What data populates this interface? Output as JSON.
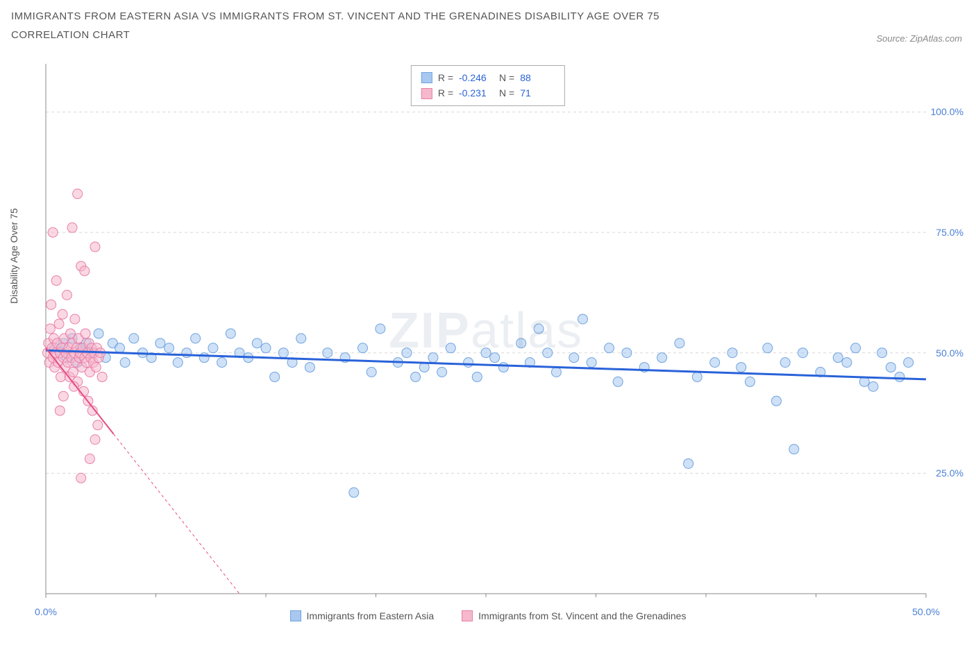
{
  "title_line1": "IMMIGRANTS FROM EASTERN ASIA VS IMMIGRANTS FROM ST. VINCENT AND THE GRENADINES DISABILITY AGE OVER 75",
  "title_line2": "CORRELATION CHART",
  "source_text": "Source: ZipAtlas.com",
  "y_axis_label": "Disability Age Over 75",
  "watermark_bold": "ZIP",
  "watermark_light": "atlas",
  "chart": {
    "type": "scatter",
    "xlim": [
      0,
      50
    ],
    "ylim": [
      0,
      110
    ],
    "x_ticks": [
      0,
      50
    ],
    "x_tick_labels": [
      "0.0%",
      "50.0%"
    ],
    "y_ticks": [
      25,
      50,
      75,
      100
    ],
    "y_tick_labels": [
      "25.0%",
      "50.0%",
      "75.0%",
      "100.0%"
    ],
    "x_minor_ticks": [
      6.25,
      12.5,
      18.75,
      25,
      31.25,
      37.5,
      43.75
    ],
    "background_color": "#ffffff",
    "grid_color": "#d8d8d8",
    "axis_color": "#888888",
    "axis_font_color": "#4a7fd6",
    "series": [
      {
        "name": "Immigrants from Eastern Asia",
        "color_fill": "#a8c8f0",
        "color_stroke": "#6fa3e0",
        "trend_color": "#2962d9",
        "trend_dash": "none",
        "marker_radius": 7,
        "fill_opacity": 0.55,
        "R": "-0.246",
        "N": "88",
        "trend": {
          "x1": 0,
          "y1": 50.5,
          "x2": 50,
          "y2": 44.5
        },
        "points": [
          [
            0.5,
            51
          ],
          [
            0.8,
            50
          ],
          [
            1.0,
            52
          ],
          [
            1.2,
            49
          ],
          [
            1.5,
            53
          ],
          [
            1.8,
            48
          ],
          [
            2.0,
            51
          ],
          [
            2.3,
            52
          ],
          [
            2.6,
            50
          ],
          [
            3.0,
            54
          ],
          [
            3.4,
            49
          ],
          [
            3.8,
            52
          ],
          [
            4.2,
            51
          ],
          [
            4.5,
            48
          ],
          [
            5.0,
            53
          ],
          [
            5.5,
            50
          ],
          [
            6.0,
            49
          ],
          [
            6.5,
            52
          ],
          [
            7.0,
            51
          ],
          [
            7.5,
            48
          ],
          [
            8.0,
            50
          ],
          [
            8.5,
            53
          ],
          [
            9.0,
            49
          ],
          [
            9.5,
            51
          ],
          [
            10.0,
            48
          ],
          [
            10.5,
            54
          ],
          [
            11.0,
            50
          ],
          [
            11.5,
            49
          ],
          [
            12.0,
            52
          ],
          [
            12.5,
            51
          ],
          [
            13.0,
            45
          ],
          [
            13.5,
            50
          ],
          [
            14.0,
            48
          ],
          [
            14.5,
            53
          ],
          [
            15.0,
            47
          ],
          [
            16.0,
            50
          ],
          [
            17.0,
            49
          ],
          [
            17.5,
            21
          ],
          [
            18.0,
            51
          ],
          [
            18.5,
            46
          ],
          [
            19.0,
            55
          ],
          [
            20.0,
            48
          ],
          [
            20.5,
            50
          ],
          [
            21.0,
            45
          ],
          [
            21.5,
            47
          ],
          [
            22.0,
            49
          ],
          [
            22.5,
            46
          ],
          [
            23.0,
            51
          ],
          [
            24.0,
            48
          ],
          [
            24.5,
            45
          ],
          [
            25.0,
            50
          ],
          [
            25.5,
            49
          ],
          [
            26.0,
            47
          ],
          [
            27.0,
            52
          ],
          [
            27.5,
            48
          ],
          [
            28.0,
            55
          ],
          [
            28.5,
            50
          ],
          [
            29.0,
            46
          ],
          [
            30.0,
            49
          ],
          [
            30.5,
            57
          ],
          [
            31.0,
            48
          ],
          [
            32.0,
            51
          ],
          [
            32.5,
            44
          ],
          [
            33.0,
            50
          ],
          [
            34.0,
            47
          ],
          [
            35.0,
            49
          ],
          [
            36.0,
            52
          ],
          [
            36.5,
            27
          ],
          [
            37.0,
            45
          ],
          [
            38.0,
            48
          ],
          [
            39.0,
            50
          ],
          [
            39.5,
            47
          ],
          [
            40.0,
            44
          ],
          [
            41.0,
            51
          ],
          [
            41.5,
            40
          ],
          [
            42.0,
            48
          ],
          [
            42.5,
            30
          ],
          [
            43.0,
            50
          ],
          [
            44.0,
            46
          ],
          [
            45.0,
            49
          ],
          [
            45.5,
            48
          ],
          [
            46.0,
            51
          ],
          [
            46.5,
            44
          ],
          [
            47.0,
            43
          ],
          [
            47.5,
            50
          ],
          [
            48.0,
            47
          ],
          [
            48.5,
            45
          ],
          [
            49.0,
            48
          ]
        ]
      },
      {
        "name": "Immigrants from St. Vincent and the Grenadines",
        "color_fill": "#f5b8cc",
        "color_stroke": "#e87fa8",
        "trend_color": "#e34d82",
        "trend_dash": "4,4",
        "marker_radius": 7,
        "fill_opacity": 0.55,
        "R": "-0.231",
        "N": "71",
        "trend": {
          "x1": 0,
          "y1": 51,
          "x2": 11,
          "y2": 0
        },
        "points": [
          [
            0.1,
            50
          ],
          [
            0.15,
            52
          ],
          [
            0.2,
            48
          ],
          [
            0.25,
            55
          ],
          [
            0.3,
            60
          ],
          [
            0.35,
            51
          ],
          [
            0.4,
            49
          ],
          [
            0.45,
            53
          ],
          [
            0.5,
            47
          ],
          [
            0.55,
            50
          ],
          [
            0.6,
            65
          ],
          [
            0.65,
            52
          ],
          [
            0.7,
            48
          ],
          [
            0.75,
            56
          ],
          [
            0.8,
            50
          ],
          [
            0.85,
            45
          ],
          [
            0.9,
            51
          ],
          [
            0.95,
            58
          ],
          [
            1.0,
            49
          ],
          [
            1.05,
            53
          ],
          [
            1.1,
            47
          ],
          [
            1.15,
            50
          ],
          [
            1.2,
            62
          ],
          [
            1.25,
            48
          ],
          [
            1.3,
            51
          ],
          [
            1.35,
            45
          ],
          [
            1.4,
            54
          ],
          [
            1.45,
            49
          ],
          [
            1.5,
            52
          ],
          [
            1.55,
            46
          ],
          [
            1.6,
            50
          ],
          [
            1.65,
            57
          ],
          [
            1.7,
            48
          ],
          [
            1.75,
            51
          ],
          [
            1.8,
            44
          ],
          [
            1.85,
            53
          ],
          [
            1.9,
            49
          ],
          [
            1.95,
            50
          ],
          [
            2.0,
            68
          ],
          [
            2.05,
            47
          ],
          [
            2.1,
            51
          ],
          [
            2.15,
            42
          ],
          [
            2.2,
            49
          ],
          [
            2.25,
            54
          ],
          [
            2.3,
            48
          ],
          [
            2.35,
            50
          ],
          [
            2.4,
            40
          ],
          [
            2.45,
            52
          ],
          [
            2.5,
            46
          ],
          [
            2.55,
            49
          ],
          [
            2.6,
            51
          ],
          [
            2.65,
            38
          ],
          [
            2.7,
            48
          ],
          [
            2.75,
            50
          ],
          [
            2.8,
            72
          ],
          [
            2.85,
            47
          ],
          [
            2.9,
            51
          ],
          [
            2.95,
            35
          ],
          [
            3.0,
            49
          ],
          [
            3.1,
            50
          ],
          [
            3.2,
            45
          ],
          [
            1.5,
            76
          ],
          [
            2.2,
            67
          ],
          [
            0.4,
            75
          ],
          [
            1.8,
            83
          ],
          [
            2.5,
            28
          ],
          [
            2.0,
            24
          ],
          [
            1.0,
            41
          ],
          [
            2.8,
            32
          ],
          [
            0.8,
            38
          ],
          [
            1.6,
            43
          ]
        ]
      }
    ]
  },
  "bottom_legend": [
    {
      "label": "Immigrants from Eastern Asia",
      "fill": "#a8c8f0",
      "stroke": "#6fa3e0"
    },
    {
      "label": "Immigrants from St. Vincent and the Grenadines",
      "fill": "#f5b8cc",
      "stroke": "#e87fa8"
    }
  ]
}
